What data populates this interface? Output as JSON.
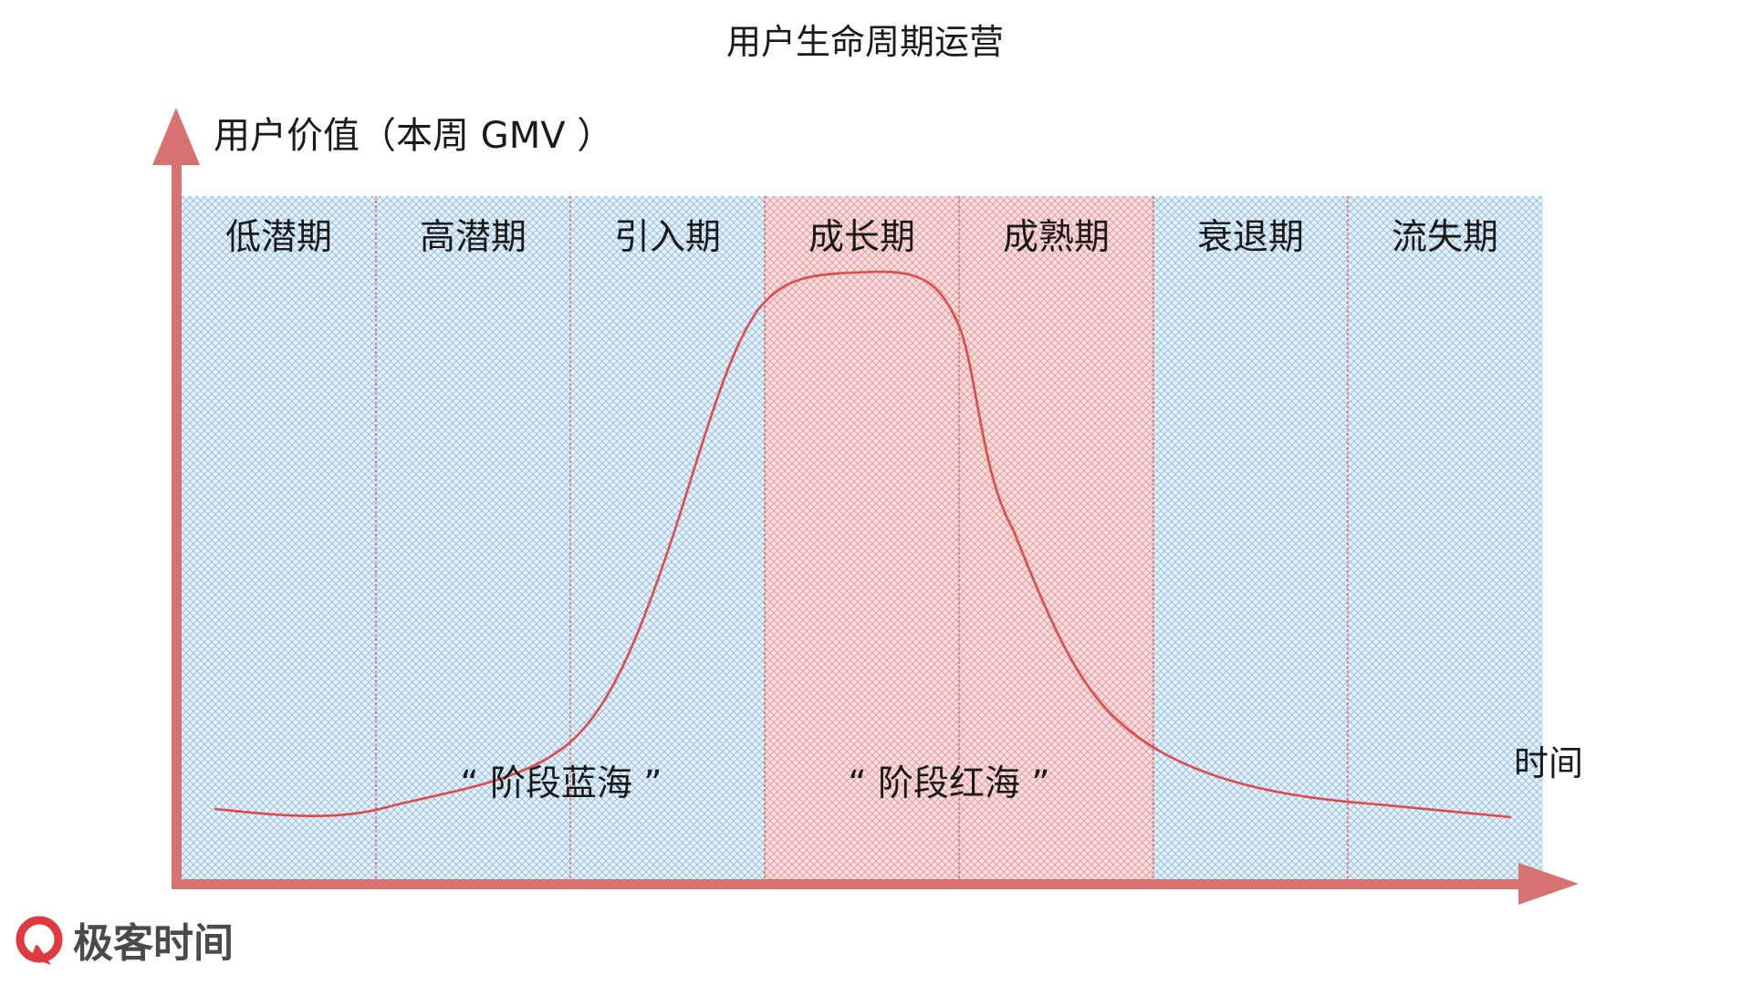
{
  "title": "用户生命周期运营",
  "y_axis_label": "用户价值（本周 GMV ）",
  "x_axis_label": "时间",
  "stages": [
    {
      "label": "低潜期",
      "phase": "blue"
    },
    {
      "label": "高潜期",
      "phase": "blue"
    },
    {
      "label": "引入期",
      "phase": "blue"
    },
    {
      "label": "成长期",
      "phase": "red"
    },
    {
      "label": "成熟期",
      "phase": "red"
    },
    {
      "label": "衰退期",
      "phase": "blue"
    },
    {
      "label": "流失期",
      "phase": "blue"
    }
  ],
  "zones": {
    "blue_label": "“ 阶段蓝海 ”",
    "red_label": "“ 阶段红海 ”"
  },
  "colors": {
    "blue_hatch": "#7fb4d9",
    "red_hatch": "#e58a8a",
    "axis": "#d86f6f",
    "curve": "#e04a4a",
    "divider": "#e05050"
  },
  "brand": {
    "name": "极客时间",
    "icon": "geektime-logo-icon"
  }
}
